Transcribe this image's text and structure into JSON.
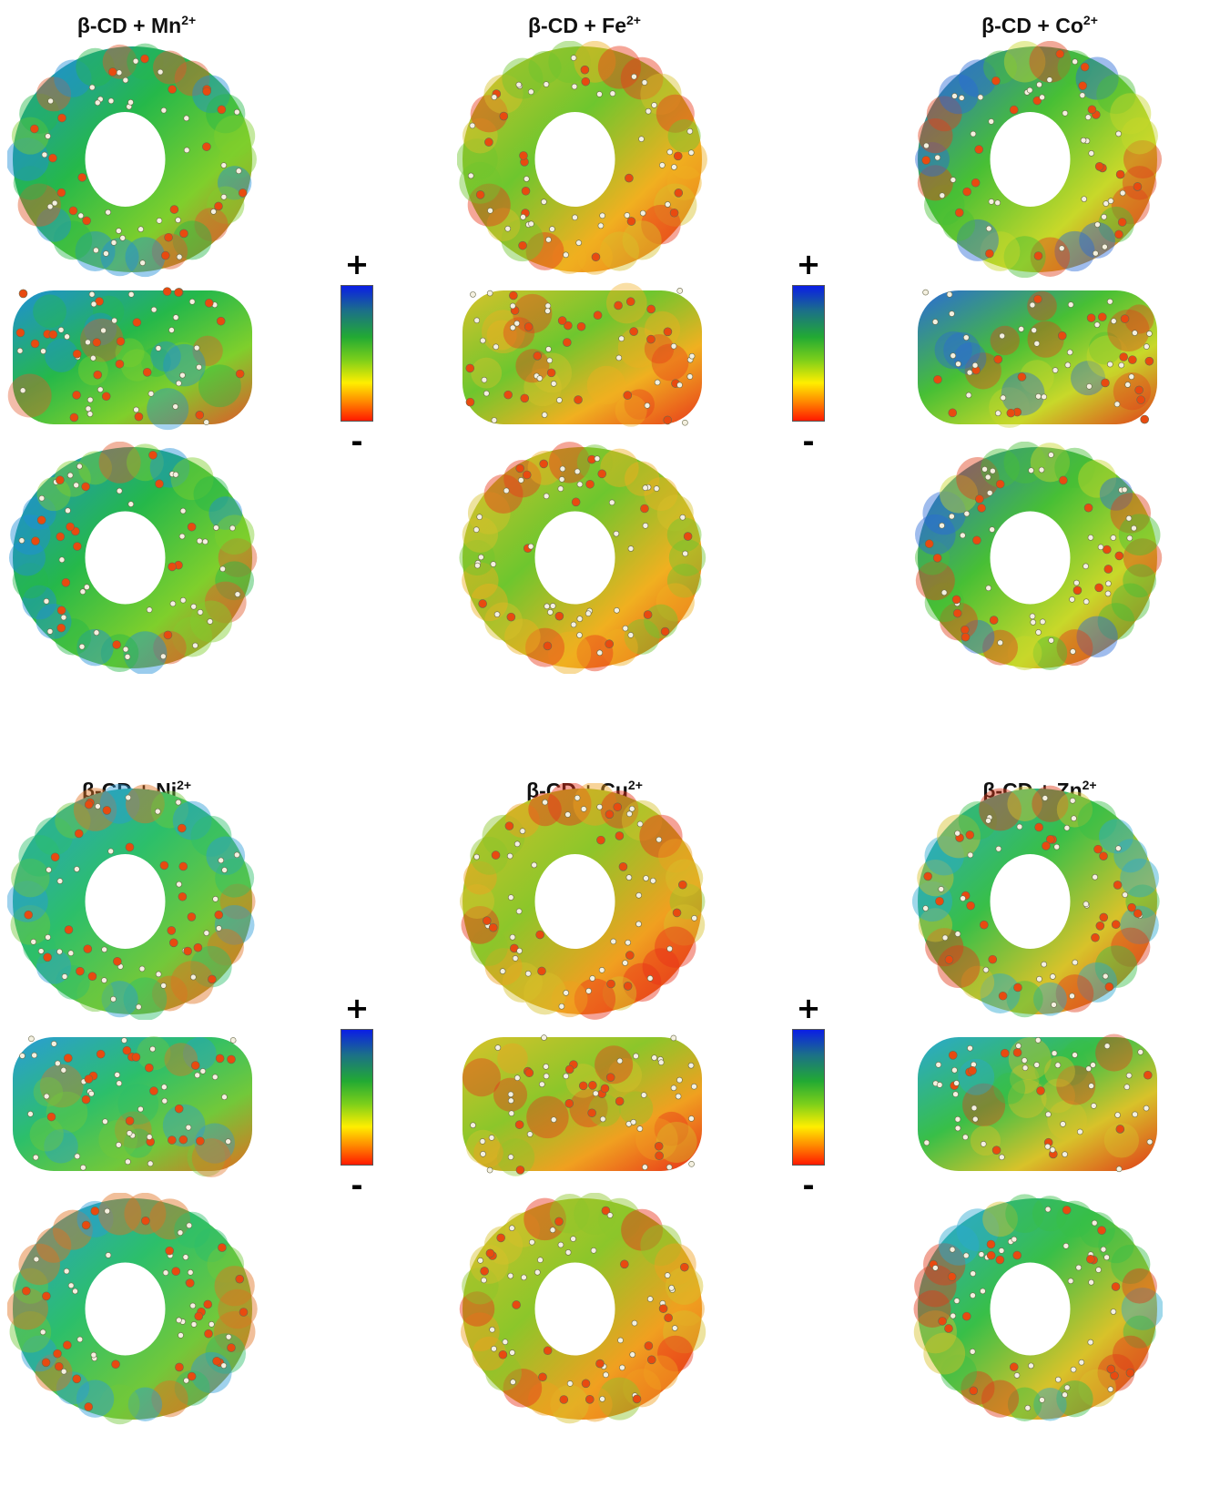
{
  "panels": [
    {
      "id": "mn",
      "base": "β-CD + ",
      "ion": "Mn",
      "charge": "2+",
      "palette": {
        "a": "#1f8fd6",
        "b": "#25b84a",
        "c": "#7fcf2c",
        "d": "#e0582a"
      }
    },
    {
      "id": "fe",
      "base": "β-CD + ",
      "ion": "Fe",
      "charge": "2+",
      "palette": {
        "a": "#d8c22a",
        "b": "#6ec62e",
        "c": "#f0b020",
        "d": "#e83a1a"
      }
    },
    {
      "id": "co",
      "base": "β-CD + ",
      "ion": "Co",
      "charge": "2+",
      "palette": {
        "a": "#2a6ad8",
        "b": "#47bf35",
        "c": "#c8d82a",
        "d": "#e0401a"
      }
    },
    {
      "id": "ni",
      "base": "β-CD + ",
      "ion": "Ni",
      "charge": "2+",
      "palette": {
        "a": "#2a9cd8",
        "b": "#2cbf6a",
        "c": "#72c83a",
        "d": "#e07020"
      }
    },
    {
      "id": "cu",
      "base": "β-CD + ",
      "ion": "Cu",
      "charge": "2+",
      "palette": {
        "a": "#d8c22a",
        "b": "#8cc62a",
        "c": "#f0a020",
        "d": "#e83018"
      }
    },
    {
      "id": "zn",
      "base": "β-CD + ",
      "ion": "Zn",
      "charge": "2+",
      "palette": {
        "a": "#2aa8d0",
        "b": "#38bf48",
        "c": "#d8c22a",
        "d": "#e03a18"
      }
    }
  ],
  "colorbars": [
    {
      "plus": "+",
      "minus": "-"
    },
    {
      "plus": "+",
      "minus": "-"
    },
    {
      "plus": "+",
      "minus": "-"
    },
    {
      "plus": "+",
      "minus": "-"
    }
  ],
  "colors": {
    "scale_positive": "#0a1ee6",
    "scale_mid_green": "#22aa33",
    "scale_mid_yellow": "#ffee00",
    "scale_negative": "#ff1a00"
  }
}
